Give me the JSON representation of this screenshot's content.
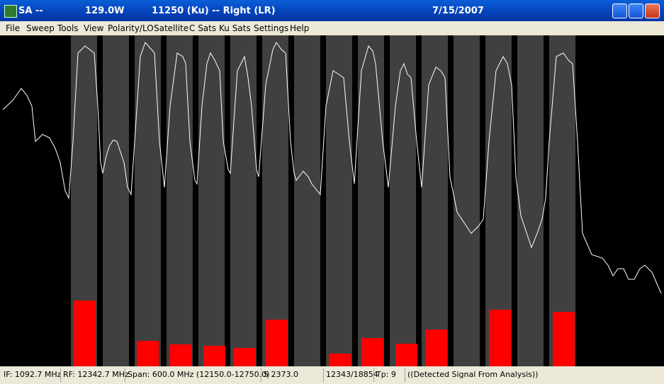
{
  "window": {
    "title_left": "SA --",
    "title_position": "129.0W",
    "title_band": "11250 (Ku) -- Right (LR)",
    "title_date": "7/15/2007"
  },
  "menu": [
    "File",
    "Sweep",
    "Tools",
    "View",
    "Polarity/LO",
    "Satellite",
    "C Sats",
    "Ku Sats",
    "Settings",
    "Help"
  ],
  "status": [
    "IF: 1092.7 MHz",
    "RF: 12342.7 MHz",
    "Span: 600.0 MHz (12150.0-12750.0)",
    "5 2373.0",
    "12343/18854",
    "Tp: 9",
    "((Detected Signal From Analysis))"
  ]
}
